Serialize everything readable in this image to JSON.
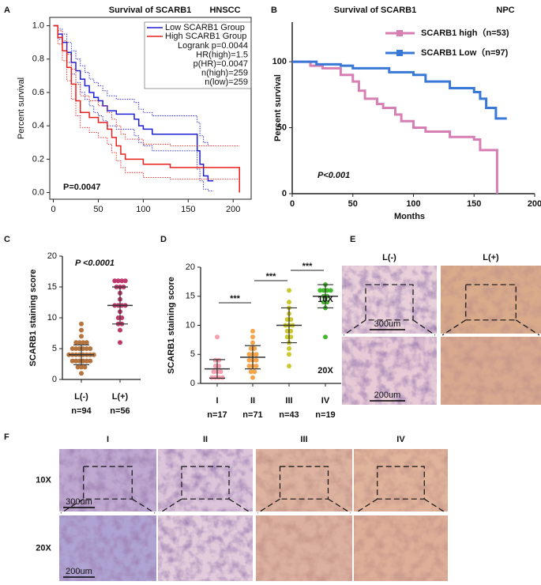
{
  "chart_data": [
    {
      "type": "line",
      "step": true,
      "panel": "A",
      "title": "Survival of SCARB1",
      "subtitle": "HNSCC",
      "ylabel": "Percent survival",
      "xlim": [
        -4,
        220
      ],
      "xticks": [
        0,
        50,
        100,
        150,
        200
      ],
      "ylim": [
        -0.04,
        1.05
      ],
      "yticks": [
        {
          "value": 0,
          "label": "0.0"
        },
        0.2,
        0.4,
        0.6,
        0.8,
        {
          "value": 1,
          "label": "1.0"
        }
      ],
      "series": [
        {
          "name": "Low SCARB1 Group",
          "color": "#1f1fd6",
          "x": [
            0,
            5,
            10,
            15,
            20,
            25,
            30,
            35,
            40,
            45,
            50,
            55,
            60,
            70,
            90,
            95,
            100,
            110,
            160,
            163,
            167,
            172,
            178
          ],
          "values": [
            1.0,
            0.95,
            0.9,
            0.84,
            0.78,
            0.73,
            0.68,
            0.64,
            0.6,
            0.57,
            0.55,
            0.52,
            0.49,
            0.47,
            0.44,
            0.4,
            0.38,
            0.35,
            0.25,
            0.17,
            0.1,
            0.07,
            0.07
          ],
          "ci_high": [
            1.0,
            0.98,
            0.95,
            0.9,
            0.85,
            0.8,
            0.76,
            0.72,
            0.68,
            0.66,
            0.64,
            0.61,
            0.58,
            0.56,
            0.54,
            0.5,
            0.48,
            0.46,
            0.42,
            0.34,
            0.3,
            0.28,
            0.28
          ],
          "ci_low": [
            1.0,
            0.92,
            0.85,
            0.78,
            0.71,
            0.66,
            0.6,
            0.56,
            0.52,
            0.48,
            0.46,
            0.43,
            0.4,
            0.38,
            0.34,
            0.3,
            0.28,
            0.25,
            0.14,
            0.07,
            0.02,
            0.01,
            0.01
          ]
        },
        {
          "name": "High SCARB1 Group",
          "color": "#e8201c",
          "x": [
            0,
            5,
            10,
            15,
            20,
            25,
            30,
            40,
            50,
            60,
            65,
            70,
            75,
            80,
            100,
            130,
            205,
            207
          ],
          "values": [
            1.0,
            0.93,
            0.85,
            0.75,
            0.65,
            0.55,
            0.48,
            0.45,
            0.42,
            0.38,
            0.33,
            0.28,
            0.23,
            0.2,
            0.17,
            0.15,
            0.15,
            0.0
          ],
          "ci_high": [
            1.0,
            0.97,
            0.91,
            0.83,
            0.74,
            0.65,
            0.58,
            0.55,
            0.52,
            0.48,
            0.44,
            0.4,
            0.35,
            0.32,
            0.29,
            0.28,
            0.28,
            0.28
          ],
          "ci_low": [
            1.0,
            0.89,
            0.79,
            0.67,
            0.56,
            0.46,
            0.39,
            0.36,
            0.33,
            0.29,
            0.24,
            0.19,
            0.15,
            0.12,
            0.09,
            0.08,
            0.08,
            0.08
          ]
        }
      ],
      "annotations": [
        "Logrank p=0.0044",
        "HR(high)=1.5",
        "p(HR)=0.0047",
        "n(high)=259",
        "n(low)=259"
      ],
      "p_text": "P=0.0047"
    },
    {
      "type": "line",
      "step": true,
      "panel": "B",
      "title": "Survival of SCARB1",
      "subtitle": "NPC",
      "xlabel": "Months",
      "ylabel": "Percent survival",
      "xlim": [
        0,
        200
      ],
      "xticks": [
        0,
        50,
        100,
        150,
        200
      ],
      "ylim": [
        0,
        130
      ],
      "yticks": [
        0,
        50,
        100
      ],
      "series": [
        {
          "name": "SCARB1 high（n=53)",
          "color": "#d77fb3",
          "x": [
            0,
            10,
            15,
            25,
            40,
            50,
            55,
            60,
            70,
            75,
            85,
            90,
            100,
            110,
            130,
            150,
            155,
            168,
            169
          ],
          "values": [
            100,
            100,
            97,
            95,
            90,
            85,
            78,
            72,
            68,
            65,
            60,
            55,
            50,
            47,
            43,
            41,
            33,
            33,
            0
          ]
        },
        {
          "name": "SCARB1 Low（n=97)",
          "color": "#3a78d8",
          "x": [
            0,
            20,
            40,
            50,
            80,
            100,
            110,
            130,
            150,
            155,
            160,
            168,
            177
          ],
          "values": [
            100,
            98,
            97,
            95,
            92,
            90,
            85,
            80,
            77,
            72,
            65,
            57,
            57
          ]
        }
      ],
      "p_text": "P<0.001"
    },
    {
      "type": "dot_plot",
      "panel": "C",
      "ylabel": "SCARB1 staining score",
      "ylim": [
        0,
        20
      ],
      "yticks": [
        0,
        5,
        10,
        15,
        20
      ],
      "categories": [
        "L(-)",
        "L(+)"
      ],
      "counts": [
        "n=94",
        "n=56"
      ],
      "groups": [
        {
          "color": "#b5733d",
          "mean": 4,
          "sd": 1.6,
          "points": [
            1,
            2,
            2,
            2,
            3,
            3,
            3,
            3,
            3,
            3,
            4,
            4,
            4,
            4,
            4,
            4,
            4,
            4,
            5,
            5,
            5,
            5,
            5,
            5,
            6,
            6,
            6,
            6,
            7,
            8,
            9
          ]
        },
        {
          "color": "#c0396b",
          "mean": 12,
          "sd": 3,
          "points": [
            6,
            8,
            9,
            9,
            10,
            10,
            11,
            12,
            12,
            12,
            12,
            13,
            14,
            15,
            15,
            15,
            16,
            16,
            16,
            16
          ]
        }
      ],
      "p_text": "P <0.0001"
    },
    {
      "type": "dot_plot",
      "panel": "D",
      "ylabel": "SCARB1 staining score",
      "ylim": [
        0,
        20
      ],
      "yticks": [
        0,
        5,
        10,
        15,
        20
      ],
      "categories": [
        "I",
        "II",
        "III",
        "IV"
      ],
      "counts": [
        "n=17",
        "n=71",
        "n=43",
        "n=19"
      ],
      "groups": [
        {
          "color": "#f4a0b0",
          "mean": 2.5,
          "sd": 1.6,
          "points": [
            1,
            1,
            1,
            1,
            2,
            2,
            2,
            3,
            3,
            4,
            4,
            8
          ]
        },
        {
          "color": "#f6a54a",
          "mean": 4.5,
          "sd": 2,
          "points": [
            1,
            2,
            2,
            3,
            3,
            3,
            4,
            4,
            4,
            5,
            5,
            5,
            6,
            6,
            7,
            8,
            9
          ]
        },
        {
          "color": "#cbc82a",
          "mean": 10,
          "sd": 3,
          "points": [
            3,
            5,
            6,
            7,
            8,
            8,
            9,
            9,
            10,
            10,
            10,
            11,
            11,
            12,
            13,
            14,
            16
          ]
        },
        {
          "color": "#43b82c",
          "mean": 15,
          "sd": 2,
          "points": [
            8,
            13,
            14,
            14,
            15,
            15,
            16,
            16,
            16,
            16,
            17
          ]
        }
      ],
      "significance": [
        "***",
        "***",
        "***"
      ]
    }
  ],
  "panel_e": {
    "panel": "E",
    "columns": [
      "L(-)",
      "L(+)"
    ],
    "rows": [
      "10X",
      "20X"
    ],
    "scale_bars": [
      "300um",
      "200um"
    ]
  },
  "panel_f": {
    "panel": "F",
    "columns": [
      "I",
      "II",
      "III",
      "IV"
    ],
    "rows": [
      "10X",
      "20X"
    ],
    "scale_bars": [
      "300um",
      "200um"
    ]
  }
}
